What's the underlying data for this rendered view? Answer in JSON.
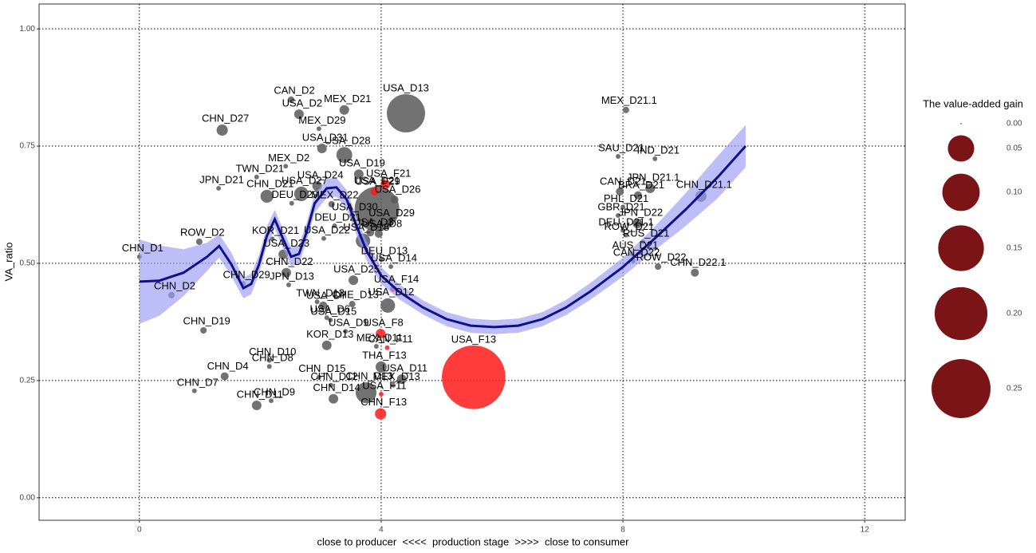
{
  "chart_data": {
    "type": "scatter",
    "xlabel": "close to producer  <<<<  production stage  >>>>  close to consumer",
    "ylabel": "VA_ratio",
    "xlim": [
      -1.66,
      12.67
    ],
    "ylim": [
      -0.048,
      1.053
    ],
    "xticks": [
      0,
      4,
      8,
      12
    ],
    "yticks": [
      {
        "value": 0,
        "label": "0.00"
      },
      {
        "value": 0.25,
        "label": "0.25"
      },
      {
        "value": 0.5,
        "label": "0.50"
      },
      {
        "value": 0.75,
        "label": "0.75"
      },
      {
        "value": 1,
        "label": "1.00"
      }
    ],
    "grid": true,
    "series": [
      {
        "color": "#595959",
        "labels": [
          "CHN_D1",
          "CHN_D2",
          "ROW_D2",
          "CHN_D29",
          "KOR_D21",
          "JPN_D21",
          "TWN_D21",
          "CHN_D27",
          "CAN_D2",
          "USA_D2",
          "MEX_D21",
          "MEX_D29",
          "USA_D13",
          "USA_D31",
          "USA_D28",
          "MEX_D2",
          "USA_D19",
          "USA_D24",
          "USA_D27",
          "USA_D26",
          "CHN_D21",
          "MEX_D22",
          "USA_D21",
          "DEU_D29",
          "USA_D30",
          "USA_D29",
          "DEU_D21",
          "USA_D3",
          "USA_D8",
          "USA_D22",
          "USA_D23",
          "USA_D18",
          "DEU_D13",
          "USA_D14",
          "CHN_D22",
          "JPN_D13",
          "USA_D25",
          "CHE_D13",
          "TWN_D13",
          "USA_D7",
          "USA_D15",
          "USA_D12",
          "USA_D6",
          "USA_D9",
          "CHN_D19",
          "MEX_D11",
          "KOR_D13",
          "CHN_D10",
          "THA_F13",
          "USA_D11",
          "CHN_D8",
          "CHN_D15",
          "CHN_D4",
          "CHN_D12",
          "CHN_D13",
          "MEX_D13",
          "CHN_D7",
          "CHN_D9",
          "CHN_D11",
          "CHN_D14",
          "MEX_D21.1",
          "SAU_D21",
          "IND_D21",
          "CAN_D21",
          "JPN_D21.1",
          "BRA_D21",
          "CHN_D21.1",
          "PHL_D21",
          "GBR_D21",
          "JPN_D22",
          "DEU_D21.1",
          "ROW_D21",
          "AUS_D21",
          "RUS_D21",
          "CAN_D22",
          "ROW_D22",
          "CHN_D22.1"
        ],
        "x": [
          0,
          0.53,
          0.99,
          1.72,
          2.2,
          1.31,
          1.94,
          1.37,
          2.51,
          2.64,
          3.39,
          2.97,
          4.41,
          3.02,
          3.39,
          2.42,
          3.63,
          2.94,
          2.68,
          4.22,
          2.11,
          3.18,
          3.93,
          2.52,
          3.51,
          4.12,
          3.23,
          3.82,
          3.96,
          3.05,
          2.38,
          3.7,
          4.0,
          4.16,
          2.43,
          2.47,
          3.54,
          3.52,
          2.94,
          3.04,
          3.16,
          4.11,
          3.1,
          3.41,
          1.06,
          3.92,
          3.1,
          2.15,
          4.0,
          4.34,
          2.15,
          2.97,
          1.41,
          3.17,
          3.75,
          4.2,
          0.91,
          2.18,
          1.94,
          3.21,
          8.05,
          7.92,
          8.53,
          7.95,
          8.45,
          8.25,
          9.29,
          8.0,
          7.92,
          8.24,
          8.0,
          8.05,
          8.15,
          8.33,
          8.17,
          8.58,
          9.19
        ],
        "y": [
          0.514,
          0.432,
          0.546,
          0.457,
          0.552,
          0.66,
          0.684,
          0.784,
          0.849,
          0.818,
          0.827,
          0.787,
          0.82,
          0.745,
          0.731,
          0.707,
          0.69,
          0.665,
          0.648,
          0.636,
          0.643,
          0.626,
          0.616,
          0.628,
          0.602,
          0.587,
          0.58,
          0.566,
          0.563,
          0.553,
          0.519,
          0.548,
          0.508,
          0.493,
          0.48,
          0.454,
          0.464,
          0.413,
          0.418,
          0.41,
          0.379,
          0.41,
          0.384,
          0.355,
          0.357,
          0.323,
          0.325,
          0.293,
          0.279,
          0.253,
          0.28,
          0.257,
          0.259,
          0.24,
          0.224,
          0.24,
          0.228,
          0.207,
          0.197,
          0.211,
          0.827,
          0.728,
          0.723,
          0.653,
          0.66,
          0.645,
          0.643,
          0.62,
          0.602,
          0.585,
          0.57,
          0.56,
          0.52,
          0.546,
          0.505,
          0.493,
          0.48
        ],
        "size": [
          0.0016,
          0.003,
          0.003,
          0.0016,
          0.0016,
          0.0016,
          0.0016,
          0.009,
          0.003,
          0.0066,
          0.0066,
          0.0016,
          0.105,
          0.0066,
          0.018,
          0.0016,
          0.0066,
          0.0066,
          0.015,
          0.0046,
          0.012,
          0.003,
          0.143,
          0.0016,
          0.0016,
          0.003,
          0.0016,
          0.0046,
          0.0046,
          0.0016,
          0.0066,
          0.015,
          0.0016,
          0.0016,
          0.0066,
          0.0016,
          0.0066,
          0.003,
          0.0016,
          0.0046,
          0.0016,
          0.015,
          0.0016,
          0.0016,
          0.003,
          0.0016,
          0.0066,
          0.0016,
          0.009,
          0.0066,
          0.0016,
          0.0016,
          0.0046,
          0.0016,
          0.031,
          0.0016,
          0.0016,
          0.0016,
          0.0066,
          0.0066,
          0.003,
          0.0016,
          0.0016,
          0.0046,
          0.0066,
          0.0046,
          0.009,
          0.0016,
          0.0016,
          0.0066,
          0.0016,
          0.0016,
          0.0016,
          0.0016,
          0.0016,
          0.003,
          0.0046
        ]
      },
      {
        "color": "#ff1a1a",
        "labels": [
          "USA_F21",
          "USA_F29",
          "USA_F14",
          "USA_F8",
          "CAN_F11",
          "USA_F13",
          "USA_F11",
          "CHN_F13"
        ],
        "x": [
          4.07,
          3.89,
          4.2,
          3.99,
          4.1,
          5.53,
          4.0,
          3.99
        ],
        "y": [
          0.668,
          0.653,
          0.446,
          0.35,
          0.32,
          0.257,
          0.221,
          0.179
        ],
        "size": [
          0.0066,
          0.0046,
          0.003,
          0.0066,
          0.0016,
          0.29,
          0.0016,
          0.009
        ]
      }
    ],
    "smooth": {
      "color": "#10108c",
      "band_color": "#9a9af5",
      "x": [
        0,
        0.33,
        0.73,
        1.12,
        1.32,
        1.52,
        1.72,
        1.85,
        1.98,
        2.11,
        2.24,
        2.38,
        2.51,
        2.64,
        2.77,
        2.9,
        3.1,
        3.26,
        3.43,
        3.6,
        3.76,
        4.0,
        4.29,
        4.69,
        5.08,
        5.48,
        5.87,
        6.27,
        6.67,
        7.06,
        7.46,
        7.99,
        8.51,
        9.04,
        9.57,
        10.03
      ],
      "y": [
        0.461,
        0.463,
        0.48,
        0.514,
        0.537,
        0.498,
        0.447,
        0.456,
        0.498,
        0.559,
        0.594,
        0.551,
        0.514,
        0.52,
        0.568,
        0.628,
        0.66,
        0.662,
        0.636,
        0.577,
        0.526,
        0.474,
        0.44,
        0.406,
        0.381,
        0.367,
        0.364,
        0.367,
        0.381,
        0.406,
        0.44,
        0.491,
        0.551,
        0.615,
        0.684,
        0.75
      ],
      "lower": [
        0.371,
        0.388,
        0.43,
        0.484,
        0.512,
        0.473,
        0.425,
        0.434,
        0.478,
        0.539,
        0.574,
        0.531,
        0.494,
        0.5,
        0.548,
        0.608,
        0.64,
        0.642,
        0.616,
        0.557,
        0.506,
        0.456,
        0.424,
        0.391,
        0.366,
        0.352,
        0.349,
        0.352,
        0.366,
        0.39,
        0.422,
        0.471,
        0.526,
        0.58,
        0.639,
        0.705
      ],
      "upper": [
        0.551,
        0.538,
        0.53,
        0.544,
        0.562,
        0.523,
        0.469,
        0.478,
        0.518,
        0.579,
        0.614,
        0.571,
        0.534,
        0.54,
        0.588,
        0.648,
        0.68,
        0.682,
        0.656,
        0.597,
        0.546,
        0.492,
        0.456,
        0.421,
        0.396,
        0.382,
        0.379,
        0.382,
        0.396,
        0.422,
        0.458,
        0.511,
        0.576,
        0.65,
        0.729,
        0.795
      ]
    },
    "legend": {
      "title": "The value-added gain",
      "color": "#7b1416",
      "ticks": [
        {
          "value": 0,
          "label": "0.00"
        },
        {
          "value": 0.05,
          "label": "0.05"
        },
        {
          "value": 0.1,
          "label": "0.10"
        },
        {
          "value": 0.15,
          "label": "0.15"
        },
        {
          "value": 0.2,
          "label": "0.20"
        },
        {
          "value": 0.25,
          "label": "0.25"
        }
      ]
    }
  }
}
